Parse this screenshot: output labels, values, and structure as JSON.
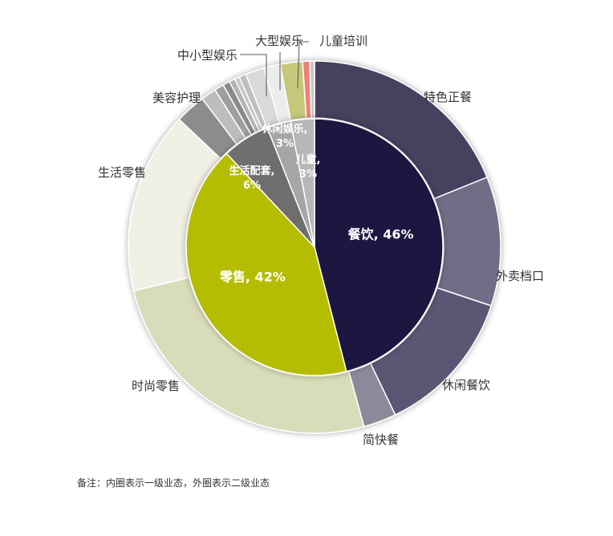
{
  "chart_data": {
    "type": "pie",
    "variant": "two-level-donut",
    "inner": [
      {
        "label": "餐饮",
        "value": 46,
        "display": "餐饮, 46%",
        "color": "#1c1640"
      },
      {
        "label": "零售",
        "value": 42,
        "display": "零售, 42%",
        "color": "#b5bd00"
      },
      {
        "label": "生活配套",
        "value": 6,
        "display": "生活配套,\n6%",
        "color": "#6e6e6e"
      },
      {
        "label": "休闲娱乐",
        "value": 3,
        "display": "休闲娱乐,\n3%",
        "color": "#a6a6a6"
      },
      {
        "label": "儿童",
        "value": 3,
        "display": "儿童,\n3%",
        "color": "#b7b7b7"
      }
    ],
    "outer": [
      {
        "label": "特色正餐",
        "value": 18.5,
        "color": "#46405e"
      },
      {
        "label": "外卖档口",
        "value": 11,
        "color": "#716d86"
      },
      {
        "label": "休闲餐饮",
        "value": 12.5,
        "color": "#5b5774"
      },
      {
        "label": "简快餐",
        "value": 2.8,
        "color": "#8c8a9a"
      },
      {
        "label": "时尚零售",
        "value": 25,
        "color": "#d9dcb8"
      },
      {
        "label": "生活零售",
        "value": 15.5,
        "color": "#f0f1e4"
      },
      {
        "label": "美容护理",
        "value": 2.6,
        "color": "#8c8c8c"
      },
      {
        "label": "",
        "value": 1.3,
        "color": "#bdbdbd"
      },
      {
        "label": "",
        "value": 0.8,
        "color": "#9e9e9e"
      },
      {
        "label": "",
        "value": 0.6,
        "color": "#8a8a8a"
      },
      {
        "label": "",
        "value": 0.5,
        "color": "#b3b3b3"
      },
      {
        "label": "",
        "value": 0.4,
        "color": "#c7c7c7"
      },
      {
        "label": "",
        "value": 0.6,
        "color": "#bfbfbf"
      },
      {
        "label": "中小型娱乐",
        "value": 1.6,
        "color": "#d9d9d9"
      },
      {
        "label": "大型娱乐",
        "value": 1.4,
        "color": "#ececec"
      },
      {
        "label": "",
        "value": 1.9,
        "color": "#c5c87a"
      },
      {
        "label": "儿童培训",
        "value": 0.6,
        "color": "#f07f74"
      },
      {
        "label": "",
        "value": 0.4,
        "color": "#c9c9c9"
      }
    ],
    "note": "备注：内圈表示一级业态，外圈表示二级业态"
  }
}
